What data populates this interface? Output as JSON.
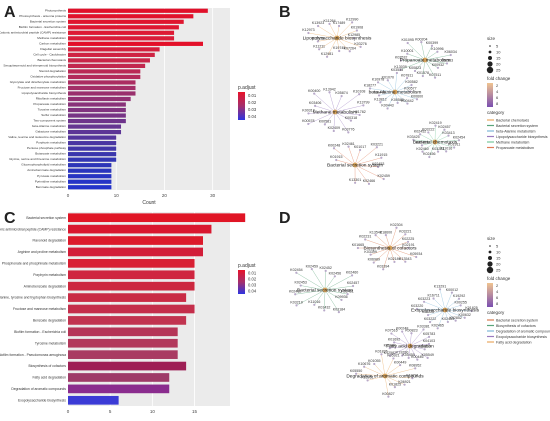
{
  "panels": {
    "A": {
      "letter": "A",
      "labels": [
        "Photosynthesis",
        "Photosynthesis - antenna proteins",
        "Bacterial secretion system",
        "Biofilm formation - Escherichia coli",
        "Cationic antimicrobial peptide (CAMP) resistance",
        "Methane metabolism",
        "Carbon metabolism",
        "Flagellar assembly",
        "Cell cycle - Caulobacter",
        "Bacterial chemotaxis",
        "Sesquiterpenoid and triterpenoid biosynthesis",
        "Steroid degradation",
        "Oxidative phosphorylation",
        "Glyoxylate and dicarboxylate metabolism",
        "Fructose and mannose metabolism",
        "Lipopolysaccharide biosynthesis",
        "Riboflavin metabolism",
        "Propanoate metabolism",
        "Tyrosine metabolism",
        "Sulfur metabolism",
        "Two-component system",
        "beta-Alanine metabolism",
        "Galactose metabolism",
        "Valine, leucine and isoleucine degradation",
        "Porphyrin metabolism",
        "Pentose phosphate pathway",
        "Butanoate metabolism",
        "Glycine, serine and threonine metabolism",
        "Glycerophospholipid metabolism",
        "Aminobenzoate degradation",
        "Pyruvate metabolism",
        "Pyrimidine metabolism",
        "Benzoate degradation"
      ],
      "counts": [
        29,
        26,
        24,
        23,
        22,
        22,
        28,
        19,
        18,
        17,
        16,
        15,
        15,
        14,
        14,
        14,
        13,
        12,
        12,
        12,
        12,
        11,
        11,
        10,
        10,
        10,
        10,
        10,
        9,
        9,
        9,
        9,
        9
      ],
      "colors": [
        "#e0102a",
        "#e0122c",
        "#df162f",
        "#de1832",
        "#dd1b35",
        "#d91d39",
        "#e31029",
        "#d4203d",
        "#cf2343",
        "#c82648",
        "#c2284e",
        "#ba2a55",
        "#b32c5b",
        "#ab2d61",
        "#a32f67",
        "#9a306d",
        "#923173",
        "#893279",
        "#80337f",
        "#773485",
        "#6e348b",
        "#653591",
        "#5c3596",
        "#53359c",
        "#4a36a2",
        "#4236a8",
        "#3a36ad",
        "#3336b3",
        "#2d35b8",
        "#2a35bd",
        "#2834c2",
        "#2634c6",
        "#2433ca"
      ],
      "x_ticks": [
        "0",
        "10",
        "20",
        "30"
      ],
      "x_label": "Count",
      "legend_title": "p.adjust",
      "legend_ticks": [
        "0.01",
        "0.02",
        "0.03",
        "0.04"
      ]
    },
    "B": {
      "letter": "B",
      "hubs": [
        "Lipopolysaccharide biosynthesis",
        "Propanoate metabolism",
        "beta-Alanine metabolism",
        "Methane metabolism",
        "Bacterial chemotaxis",
        "Bacterial secretion system"
      ],
      "genes": [
        "K12985",
        "K03276",
        "K07264",
        "K19745",
        "K12981",
        "K11211",
        "K12975",
        "K12973",
        "K13923",
        "K11264",
        "K17489",
        "K12990",
        "K01908",
        "K00932",
        "K07511",
        "K01578",
        "K00823",
        "K13039",
        "K03532",
        "K10001",
        "K01095",
        "K00204",
        "K00399",
        "K10996",
        "K06034",
        "K00583",
        "K00580",
        "K00443",
        "K13812",
        "K00440",
        "K18277",
        "K10978",
        "K01070",
        "K03533",
        "K07811",
        "K00582",
        "K00577",
        "K00600",
        "K00442",
        "K00581",
        "K00578",
        "K00319",
        "K03406",
        "K00400",
        "K13942",
        "K05874",
        "K10108",
        "K13799",
        "K01782",
        "K00318",
        "K03776",
        "K02409",
        "K00408",
        "K03425",
        "K02452",
        "K03222",
        "K02419",
        "K02457",
        "K03413",
        "K02454",
        "K01911",
        "K11016",
        "K03223",
        "K02456",
        "K02460",
        "K01915",
        "K00248",
        "K02461",
        "K01017",
        "K03221",
        "K11915",
        "K02453",
        "K02459",
        "K02466",
        "K13301"
      ],
      "legend_size_title": "size",
      "legend_sizes": [
        "5",
        "10",
        "15",
        "20",
        "25"
      ],
      "legend_fold_title": "fold change",
      "legend_fold_ticks": [
        "2",
        "4",
        "6",
        "8"
      ],
      "legend_category_title": "category",
      "categories": [
        "Bacterial chemotaxis",
        "Bacterial secretion system",
        "beta-Alanine metabolism",
        "Lipopolysaccharide biosynthesis",
        "Methane metabolism",
        "Propanoate metabolism"
      ],
      "category_colors": [
        "#e8a860",
        "#5aa57a",
        "#7fb8d8",
        "#9b7bc0",
        "#79c99d",
        "#e07a55"
      ]
    },
    "C": {
      "letter": "C",
      "labels": [
        "Bacterial secretion system",
        "Cationic antimicrobial peptide (CAMP) resistance",
        "Flavonoid degradation",
        "Arginine and proline metabolism",
        "Phosphonate and phosphinate metabolism",
        "Porphyrin metabolism",
        "Aminobenzoate degradation",
        "Phenylalanine, tyrosine and tryptophan biosynthesis",
        "Fructose and mannose metabolism",
        "Benzoate degradation",
        "Biofilm formation - Escherichia coli",
        "Tyrosine metabolism",
        "Biofilm formation - Pseudomonas aeruginosa",
        "Biosynthesis of cofactors",
        "Fatty acid degradation",
        "Degradation of aromatic compounds",
        "Exopolysaccharide biosynthesis"
      ],
      "counts": [
        21,
        17,
        16,
        16,
        15,
        15,
        15,
        14,
        15,
        14,
        13,
        13,
        13,
        14,
        12,
        12,
        6
      ],
      "colors": [
        "#e01525",
        "#d9172f",
        "#dc1a2b",
        "#d21d39",
        "#d81f33",
        "#cf2540",
        "#cc283f",
        "#c92b45",
        "#c42e4b",
        "#c13450",
        "#b53557",
        "#b2395c",
        "#a93b62",
        "#9e1f55",
        "#9e3a68",
        "#8a2c8e",
        "#3b3bd6"
      ],
      "x_ticks": [
        "0",
        "5",
        "10",
        "15"
      ],
      "legend_title": "p.adjust",
      "legend_ticks": [
        "0.01",
        "0.02",
        "0.03",
        "0.04"
      ]
    },
    "D": {
      "letter": "D",
      "hubs": [
        "Biosynthesis of cofactors",
        "Bacterial secretion system",
        "Exopolysaccharide biosynthesis",
        "Fatty acid degradation",
        "Degradation of aromatic compounds"
      ],
      "genes": [
        "K02191",
        "K05934",
        "K13543",
        "K02189",
        "K03394",
        "K06989",
        "K03399",
        "K01665",
        "K02231",
        "K13542",
        "K18600",
        "K02304",
        "K03221",
        "K02225",
        "K09936",
        "K03184",
        "K01432",
        "K11016",
        "K03219",
        "K02462",
        "K02453",
        "K02454",
        "K02459",
        "K02452",
        "K02456",
        "K02460",
        "K02457",
        "K02461",
        "K02463",
        "K02465",
        "K03222",
        "K03228",
        "K03220",
        "K03223",
        "K16711",
        "K13291",
        "K00012",
        "K19292",
        "K00255",
        "K01825",
        "K00632",
        "K02852",
        "K19290",
        "K12582",
        "K00680",
        "K01692",
        "K07516",
        "K00248",
        "K00823",
        "K03381",
        "K05783",
        "K04103",
        "K10219",
        "K05549",
        "K00446",
        "K00455",
        "K13951",
        "K05550",
        "K10676",
        "K01055",
        "K01826",
        "K05921",
        "K00449",
        "K08952",
        "K19291",
        "K06921",
        "K01825",
        "K00827"
      ],
      "legend_size_title": "size",
      "legend_sizes": [
        "5",
        "10",
        "15",
        "20",
        "25"
      ],
      "legend_fold_title": "fold change",
      "legend_fold_ticks": [
        "2",
        "4",
        "6",
        "8"
      ],
      "legend_category_title": "category",
      "categories": [
        "Bacterial secretion system",
        "Biosynthesis of cofactors",
        "Degradation of aromatic compounds",
        "Exopolysaccharide biosynthesis",
        "Fatty acid degradation"
      ],
      "category_colors": [
        "#d97a4f",
        "#5aa57a",
        "#7fb8d8",
        "#9b7bc0",
        "#e8a860"
      ]
    }
  }
}
